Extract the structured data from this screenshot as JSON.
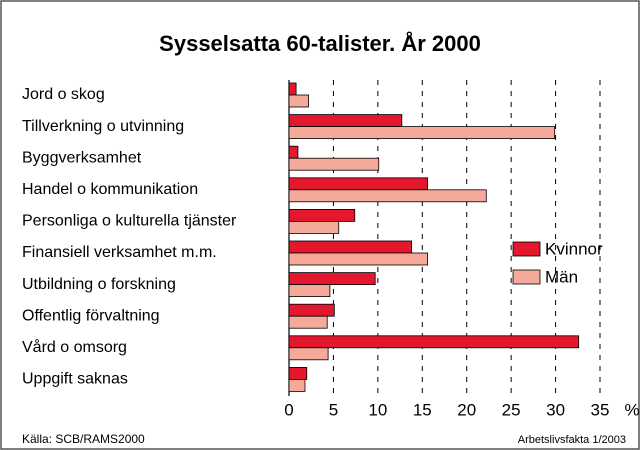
{
  "chart_data": {
    "type": "barh",
    "title": "Sysselsatta 60-talister. År 2000",
    "categories": [
      "Jord o skog",
      "Tillverkning o utvinning",
      "Byggverksamhet",
      "Handel o kommunikation",
      "Personliga o kulturella tjänster",
      "Finansiell verksamhet m.m.",
      "Utbildning o forskning",
      "Offentlig förvaltning",
      "Vård o omsorg",
      "Uppgift saknas"
    ],
    "series": [
      {
        "name": "Kvinnor",
        "color": "#e3182d",
        "values": [
          0.8,
          12.7,
          1.0,
          15.6,
          7.4,
          13.8,
          9.7,
          5.1,
          32.6,
          2.0
        ]
      },
      {
        "name": "Män",
        "color": "#f5a998",
        "values": [
          2.2,
          29.9,
          10.1,
          22.2,
          5.6,
          15.6,
          4.6,
          4.3,
          4.4,
          1.8
        ]
      }
    ],
    "xlim": [
      0,
      35
    ],
    "xticks": [
      0,
      5,
      10,
      15,
      20,
      25,
      30,
      35
    ],
    "xlabel": "%",
    "grid": true,
    "legend": "right",
    "source": "Källa: SCB/RAMS2000",
    "note": "Arbetslivsfakta 1/2003"
  }
}
